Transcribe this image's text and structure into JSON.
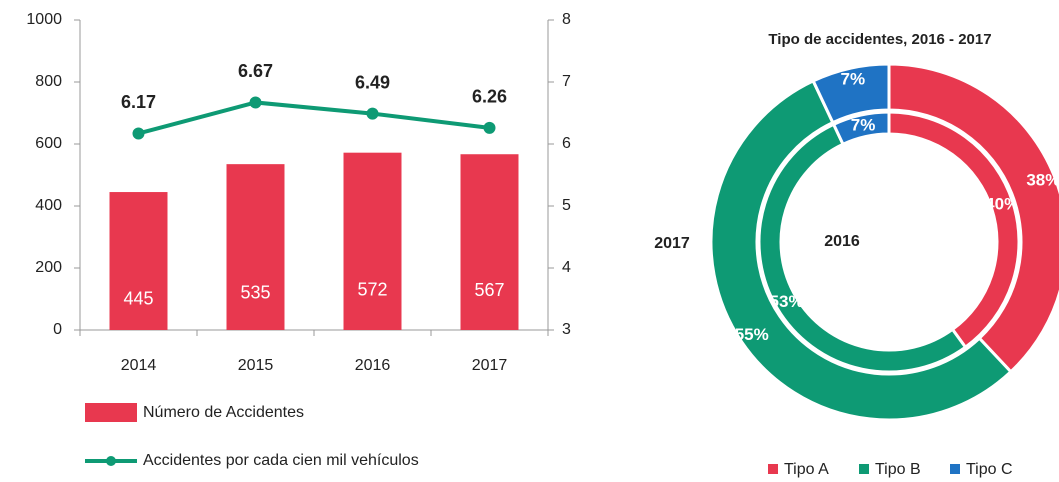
{
  "chart_data": [
    {
      "type": "bar",
      "categories": [
        "2014",
        "2015",
        "2016",
        "2017"
      ],
      "series": [
        {
          "name": "Número de Accidentes",
          "type": "bar",
          "color": "#e8384f",
          "values": [
            445,
            535,
            572,
            567
          ]
        },
        {
          "name": "Accidentes por cada cien mil vehículos",
          "type": "line",
          "axis": "y2",
          "color": "#0e9a74",
          "values": [
            6.17,
            6.67,
            6.49,
            6.26
          ]
        }
      ],
      "ylim": [
        0,
        1000
      ],
      "yticks": [
        0,
        200,
        400,
        600,
        800,
        1000
      ],
      "y2lim": [
        3,
        8
      ],
      "y2ticks": [
        3,
        4,
        5,
        6,
        7,
        8
      ],
      "legend": "bottom"
    },
    {
      "type": "pie",
      "title": "Tipo de accidentes, 2016 - 2017",
      "categories": [
        "Tipo A",
        "Tipo B",
        "Tipo C"
      ],
      "colors": [
        "#e8384f",
        "#0e9a74",
        "#1f73c4"
      ],
      "series": [
        {
          "name": "2016",
          "values": [
            40,
            53,
            7
          ],
          "value_labels": [
            "40%",
            "53%",
            "7%"
          ]
        },
        {
          "name": "2017",
          "values": [
            38,
            55,
            7
          ],
          "value_labels": [
            "38%",
            "55%",
            "7%"
          ]
        }
      ],
      "legend": "bottom"
    }
  ]
}
